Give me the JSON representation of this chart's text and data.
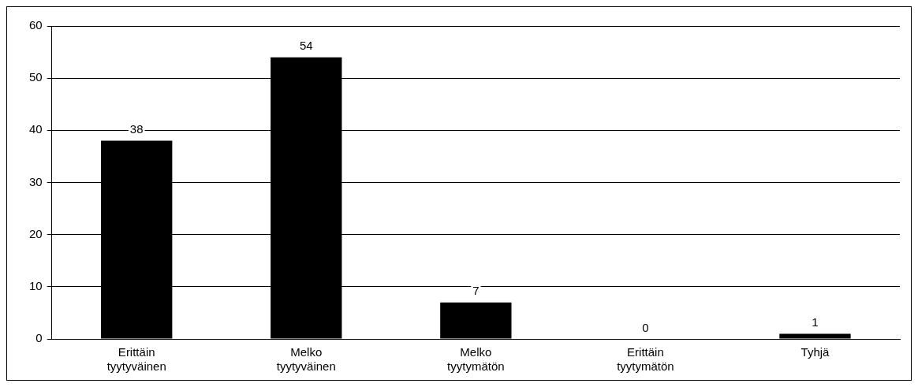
{
  "chart_data": {
    "type": "bar",
    "categories": [
      "Erittäin tyytyväinen",
      "Melko tyytyväinen",
      "Melko tyytymätön",
      "Erittäin tyytymätön",
      "Tyhjä"
    ],
    "values": [
      38,
      54,
      7,
      0,
      1
    ],
    "color": "#000000",
    "ylim": [
      0,
      60
    ],
    "yticks": [
      0,
      10,
      20,
      30,
      40,
      50,
      60
    ],
    "grid": "y",
    "data_labels": true,
    "legend": false
  }
}
